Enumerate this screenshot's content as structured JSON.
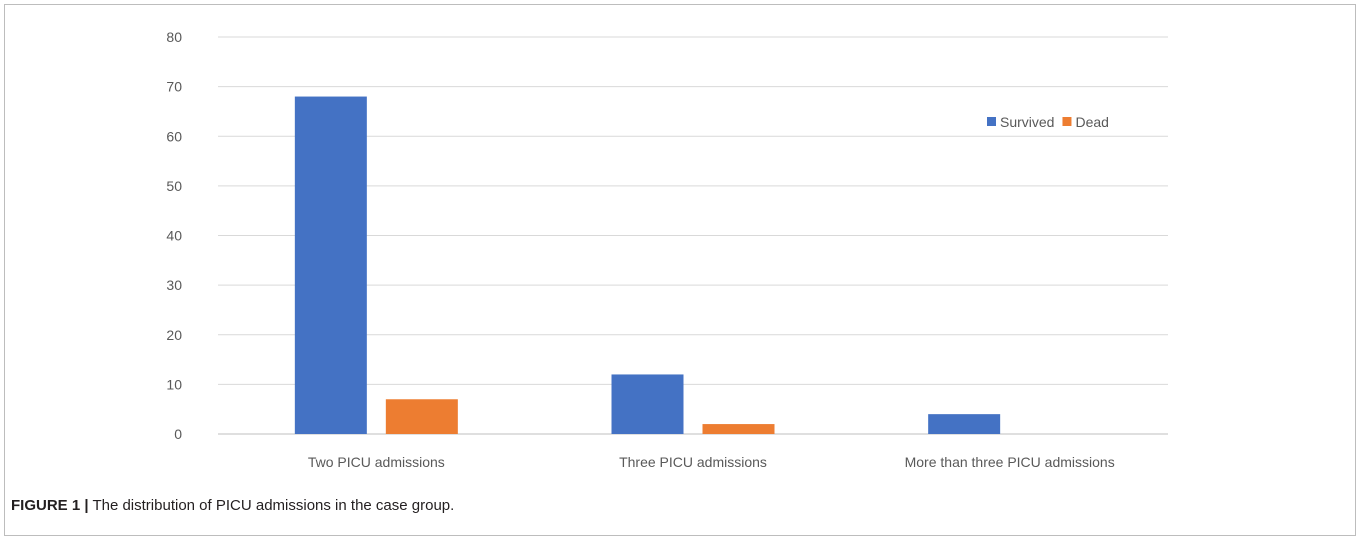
{
  "caption": {
    "label": "FIGURE 1 |",
    "text": "The distribution of PICU admissions in the case group."
  },
  "chart_data": {
    "type": "bar",
    "categories": [
      "Two PICU admissions",
      "Three PICU admissions",
      "More than three PICU admissions"
    ],
    "series": [
      {
        "name": "Survived",
        "values": [
          68,
          12,
          4
        ],
        "color": "#4472c4"
      },
      {
        "name": "Dead",
        "values": [
          7,
          2,
          0
        ],
        "color": "#ed7d31"
      }
    ],
    "ylim": [
      0,
      80
    ],
    "yticks": [
      0,
      10,
      20,
      30,
      40,
      50,
      60,
      70,
      80
    ],
    "grid": true,
    "legend_position": "top-right",
    "title": "",
    "xlabel": "",
    "ylabel": ""
  }
}
